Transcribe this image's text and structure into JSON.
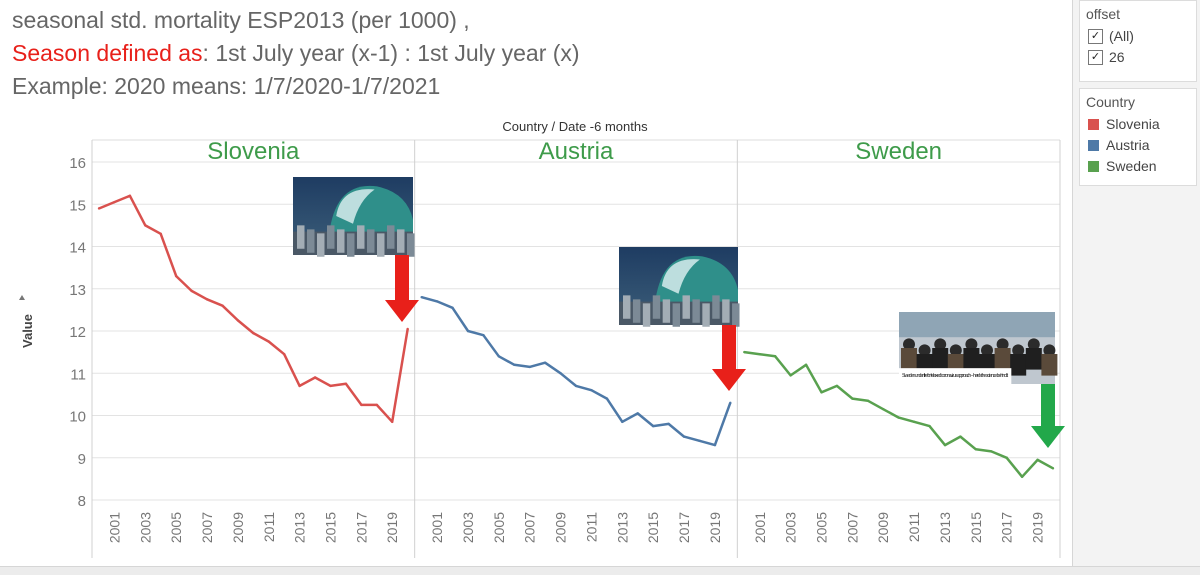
{
  "header": {
    "line1": "seasonal std. mortality ESP2013  (per 1000) ,",
    "line2_red": "Season defined as",
    "line2_rest": ": 1st July year (x-1) : 1st July  year (x)",
    "line3": "Example: 2020 means: 1/7/2020-1/7/2021"
  },
  "filter": {
    "title": "offset",
    "options": [
      {
        "label": "(All)",
        "checked": true
      },
      {
        "label": "26",
        "checked": true
      }
    ]
  },
  "legend": {
    "title": "Country",
    "items": [
      {
        "label": "Slovenia",
        "color": "#d9514e"
      },
      {
        "label": "Austria",
        "color": "#4e79a7"
      },
      {
        "label": "Sweden",
        "color": "#59a14f"
      }
    ]
  },
  "chart_data": {
    "type": "line",
    "title": "Country  /  Date -6 months",
    "ylabel": "Value",
    "ylim": [
      8,
      16
    ],
    "yticks": [
      8,
      9,
      10,
      11,
      12,
      13,
      14,
      15,
      16
    ],
    "x_tick_labels": [
      "2001",
      "2003",
      "2005",
      "2007",
      "2009",
      "2011",
      "2013",
      "2015",
      "2017",
      "2019"
    ],
    "panels": [
      {
        "name": "Slovenia",
        "color": "#d9514e",
        "x": [
          2000,
          2001,
          2002,
          2003,
          2004,
          2005,
          2006,
          2007,
          2008,
          2009,
          2010,
          2011,
          2012,
          2013,
          2014,
          2015,
          2016,
          2017,
          2018,
          2019,
          2020
        ],
        "values": [
          14.9,
          15.05,
          15.2,
          14.5,
          14.3,
          13.3,
          12.95,
          12.75,
          12.6,
          12.25,
          11.95,
          11.75,
          11.45,
          10.7,
          10.9,
          10.7,
          10.75,
          10.25,
          10.25,
          9.85,
          12.05
        ],
        "annotation": {
          "image": "tsunami-wave",
          "arrow": "down",
          "arrow_color": "#e8201a"
        }
      },
      {
        "name": "Austria",
        "color": "#4e79a7",
        "x": [
          2000,
          2001,
          2002,
          2003,
          2004,
          2005,
          2006,
          2007,
          2008,
          2009,
          2010,
          2011,
          2012,
          2013,
          2014,
          2015,
          2016,
          2017,
          2018,
          2019,
          2020
        ],
        "values": [
          12.8,
          12.7,
          12.55,
          12.0,
          11.9,
          11.4,
          11.2,
          11.15,
          11.25,
          11.0,
          10.7,
          10.6,
          10.4,
          9.85,
          10.05,
          9.75,
          9.8,
          9.5,
          9.4,
          9.3,
          10.3
        ],
        "annotation": {
          "image": "tsunami-wave",
          "arrow": "down",
          "arrow_color": "#e8201a"
        }
      },
      {
        "name": "Sweden",
        "color": "#59a14f",
        "x": [
          2000,
          2001,
          2002,
          2003,
          2004,
          2005,
          2006,
          2007,
          2008,
          2009,
          2010,
          2011,
          2012,
          2013,
          2014,
          2015,
          2016,
          2017,
          2018,
          2019,
          2020
        ],
        "values": [
          11.5,
          11.45,
          11.4,
          10.95,
          11.2,
          10.55,
          10.7,
          10.4,
          10.35,
          10.15,
          9.95,
          9.85,
          9.75,
          9.3,
          9.5,
          9.2,
          9.15,
          9.0,
          8.55,
          8.95,
          8.75
        ],
        "annotation": {
          "image": "news-photo-crowd",
          "caption": "Sweden under fire for 'relaxed' coronavirus approach – here's the science behind it",
          "arrow": "down",
          "arrow_color": "#22a84a"
        }
      }
    ]
  }
}
